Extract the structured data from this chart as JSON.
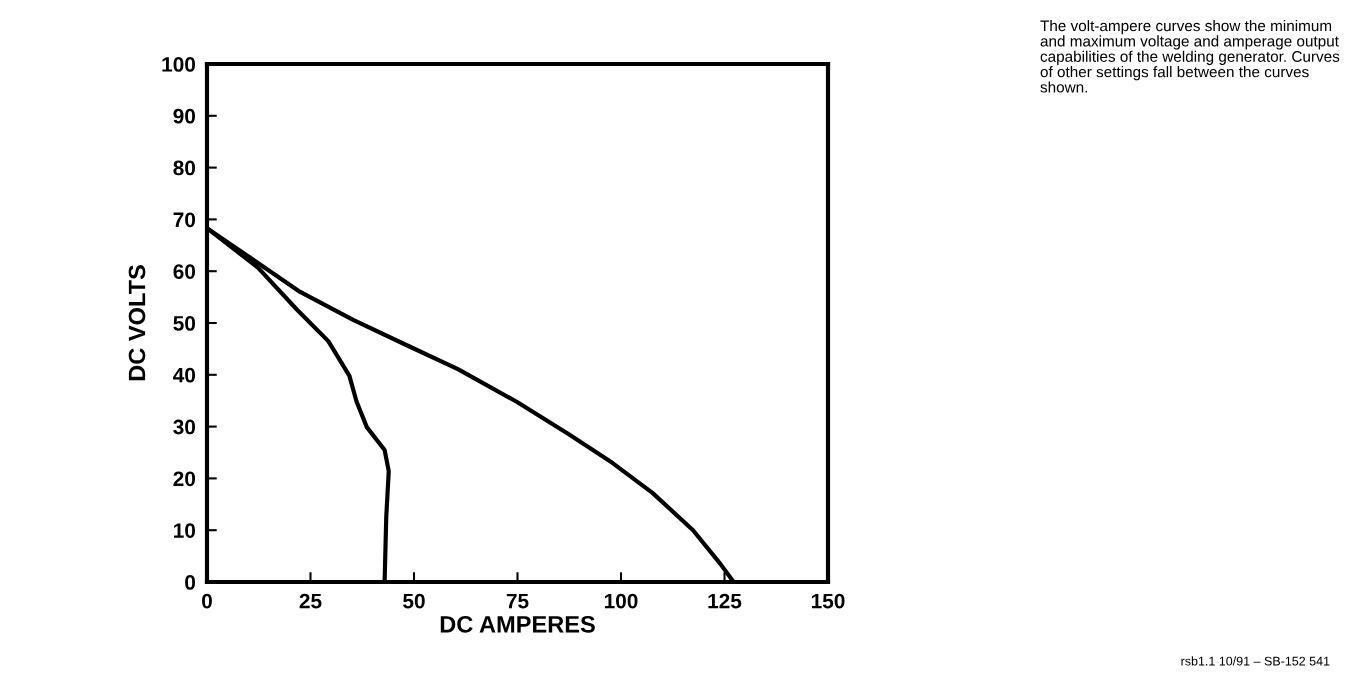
{
  "chart_data": {
    "type": "line",
    "xlabel": "DC AMPERES",
    "ylabel": "DC VOLTS",
    "xlim": [
      0,
      150
    ],
    "xticks": [
      0,
      25,
      50,
      75,
      100,
      125,
      150
    ],
    "ylim": [
      0,
      100
    ],
    "yticks": [
      0,
      10,
      20,
      30,
      40,
      50,
      60,
      70,
      80,
      90,
      100
    ],
    "grid": false,
    "legend": false,
    "marker": "none",
    "line_style": "solid",
    "series": [
      {
        "color": "#000000",
        "x": [
          0,
          12.3,
          21.7,
          29.3,
          34.4,
          36.1,
          38.6,
          42.9,
          43.9,
          43.3,
          42.9
        ],
        "values": [
          68.3,
          60.7,
          52.6,
          46.5,
          39.8,
          34.9,
          29.9,
          25.5,
          21.4,
          12.6,
          0
        ]
      },
      {
        "color": "#000000",
        "x": [
          0,
          12.3,
          22.5,
          35.3,
          48,
          60.6,
          75,
          87.2,
          97.9,
          107.6,
          117.4,
          124,
          127.2
        ],
        "values": [
          68.3,
          61.6,
          56,
          50.6,
          45.8,
          41.1,
          34.7,
          28.6,
          23,
          17.2,
          10,
          3.5,
          0
        ]
      }
    ],
    "annotations": [
      "The volt-ampere curves show the minimum and maximum voltage and amperage output capabilities of the welding generator. Curves of other settings fall between the curves shown.",
      "rsb1.1 10/91 – SB-152 541"
    ]
  }
}
